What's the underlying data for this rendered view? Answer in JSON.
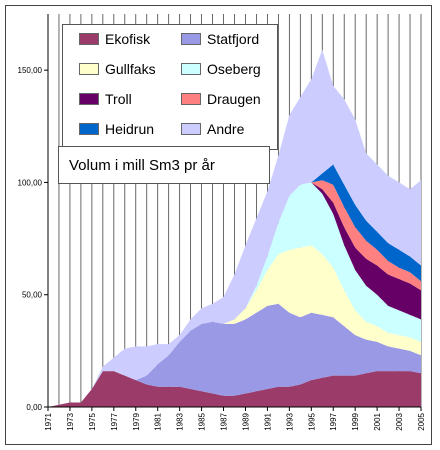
{
  "chart_data": {
    "type": "area",
    "title": "Volum i mill Sm3 pr år",
    "ylim": [
      0,
      175
    ],
    "yticks": [
      0,
      50,
      100,
      150
    ],
    "ytick_labels": [
      "0,00",
      "50,00",
      "100,00",
      "150,00"
    ],
    "xtick_labels": [
      "1971",
      "1973",
      "1975",
      "1977",
      "1979",
      "1981",
      "1983",
      "1985",
      "1987",
      "1989",
      "1991",
      "1993",
      "1995",
      "1997",
      "1999",
      "2001",
      "2003",
      "2005"
    ],
    "x": [
      1971,
      1972,
      1973,
      1974,
      1975,
      1976,
      1977,
      1978,
      1979,
      1980,
      1981,
      1982,
      1983,
      1984,
      1985,
      1986,
      1987,
      1988,
      1989,
      1990,
      1991,
      1992,
      1993,
      1994,
      1995,
      1996,
      1997,
      1998,
      1999,
      2000,
      2001,
      2002,
      2003,
      2004,
      2005
    ],
    "series": [
      {
        "name": "Ekofisk",
        "color": "#9b3b6a",
        "values": [
          0,
          1,
          2,
          2,
          8,
          16,
          16,
          14,
          12,
          10,
          9,
          9,
          9,
          8,
          7,
          6,
          5,
          5,
          6,
          7,
          8,
          9,
          9,
          10,
          12,
          13,
          14,
          14,
          14,
          15,
          16,
          16,
          16,
          16,
          15
        ]
      },
      {
        "name": "Statfjord",
        "color": "#9999e6",
        "values": [
          0,
          0,
          0,
          0,
          0,
          0,
          0,
          0,
          0,
          4,
          10,
          14,
          20,
          26,
          30,
          32,
          32,
          32,
          33,
          35,
          37,
          37,
          33,
          30,
          30,
          28,
          26,
          22,
          18,
          15,
          13,
          11,
          10,
          9,
          8
        ]
      },
      {
        "name": "Gullfaks",
        "color": "#ffffcc",
        "values": [
          0,
          0,
          0,
          0,
          0,
          0,
          0,
          0,
          0,
          0,
          0,
          0,
          0,
          0,
          0,
          0,
          0,
          2,
          5,
          10,
          16,
          22,
          28,
          31,
          30,
          27,
          22,
          16,
          11,
          8,
          7,
          6,
          6,
          6,
          6
        ]
      },
      {
        "name": "Oseberg",
        "color": "#ccffff",
        "values": [
          0,
          0,
          0,
          0,
          0,
          0,
          0,
          0,
          0,
          0,
          0,
          0,
          0,
          0,
          0,
          0,
          0,
          0,
          0,
          2,
          6,
          14,
          24,
          28,
          28,
          27,
          24,
          20,
          18,
          16,
          14,
          12,
          11,
          10,
          10
        ]
      },
      {
        "name": "Troll",
        "color": "#660066",
        "values": [
          0,
          0,
          0,
          0,
          0,
          0,
          0,
          0,
          0,
          0,
          0,
          0,
          0,
          0,
          0,
          0,
          0,
          0,
          0,
          0,
          0,
          0,
          0,
          0,
          0,
          2,
          5,
          8,
          10,
          12,
          13,
          14,
          14,
          14,
          13
        ]
      },
      {
        "name": "Draugen",
        "color": "#ff8080",
        "values": [
          0,
          0,
          0,
          0,
          0,
          0,
          0,
          0,
          0,
          0,
          0,
          0,
          0,
          0,
          0,
          0,
          0,
          0,
          0,
          0,
          0,
          0,
          0,
          0,
          0,
          4,
          8,
          9,
          9,
          8,
          7,
          6,
          5,
          5,
          4
        ]
      },
      {
        "name": "Heidrun",
        "color": "#0066cc",
        "values": [
          0,
          0,
          0,
          0,
          0,
          0,
          0,
          0,
          0,
          0,
          0,
          0,
          0,
          0,
          0,
          0,
          0,
          0,
          0,
          0,
          0,
          0,
          0,
          0,
          0,
          3,
          9,
          10,
          10,
          9,
          8,
          8,
          8,
          7,
          7
        ]
      },
      {
        "name": "Andre",
        "color": "#ccccff",
        "values": [
          0,
          0,
          0,
          0,
          0,
          2,
          6,
          12,
          15,
          13,
          9,
          5,
          3,
          5,
          7,
          8,
          12,
          20,
          28,
          30,
          29,
          30,
          36,
          39,
          46,
          55,
          35,
          38,
          38,
          30,
          30,
          30,
          30,
          30,
          38
        ]
      }
    ],
    "legend_position": "top-left",
    "grid": "vertical"
  }
}
